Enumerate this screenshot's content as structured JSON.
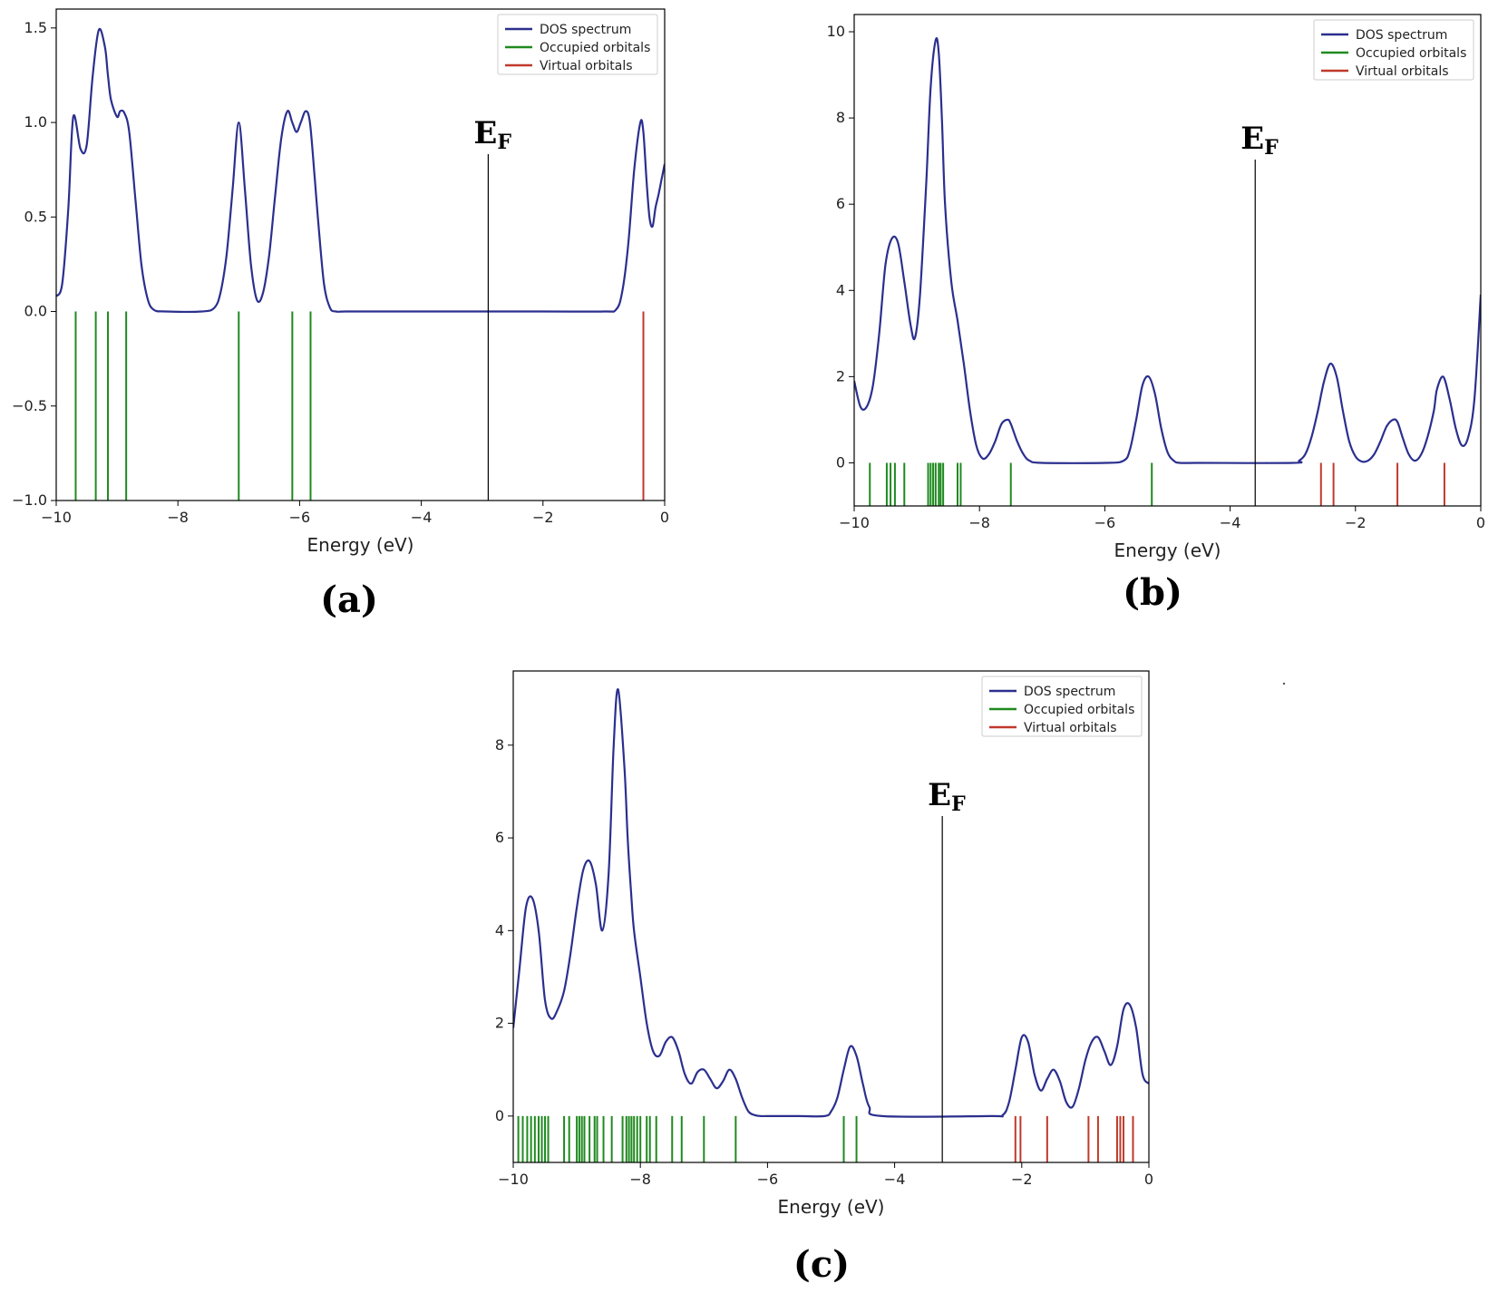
{
  "colors": {
    "dos": "#2b2f8e",
    "occupied": "#1f8a1f",
    "virtual": "#c0392b",
    "axis": "#000000",
    "fermi": "#000000"
  },
  "chart_data": [
    {
      "type": "line",
      "caption": "(a)",
      "xlabel": "Energy (eV)",
      "ylabel": "",
      "xlim": [
        -10,
        0
      ],
      "ylim": [
        -1.0,
        1.6
      ],
      "xticks": [
        -10,
        -8,
        -6,
        -4,
        -2,
        0
      ],
      "xtick_labels": [
        "−10",
        "−8",
        "−6",
        "−4",
        "−2",
        "0"
      ],
      "yticks": [
        -1.0,
        -0.5,
        0.0,
        0.5,
        1.0,
        1.5
      ],
      "ytick_labels": [
        "−1.0",
        "−0.5",
        "0.0",
        "0.5",
        "1.0",
        "1.5"
      ],
      "legend": [
        "DOS spectrum",
        "Occupied orbitals",
        "Virtual orbitals"
      ],
      "legend_position": "top-right",
      "fermi": {
        "x": -2.9,
        "label_main": "E",
        "label_sub": "F"
      },
      "series": [
        {
          "name": "DOS spectrum",
          "x": [
            -10,
            -9.9,
            -9.8,
            -9.72,
            -9.6,
            -9.5,
            -9.4,
            -9.3,
            -9.2,
            -9.15,
            -9.1,
            -9.0,
            -8.95,
            -8.88,
            -8.8,
            -8.7,
            -8.6,
            -8.5,
            -8.4,
            -8.2,
            -7.6,
            -7.4,
            -7.3,
            -7.2,
            -7.1,
            -7.0,
            -6.9,
            -6.8,
            -6.7,
            -6.6,
            -6.5,
            -6.4,
            -6.3,
            -6.2,
            -6.12,
            -6.05,
            -5.98,
            -5.9,
            -5.83,
            -5.75,
            -5.7,
            -5.6,
            -5.5,
            -5.4,
            -5.2,
            -4.0,
            -2.0,
            -1.0,
            -0.8,
            -0.7,
            -0.6,
            -0.5,
            -0.4,
            -0.35,
            -0.3,
            -0.25,
            -0.2,
            -0.15,
            -0.1,
            -0.05,
            0
          ],
          "values": [
            0.08,
            0.15,
            0.55,
            1.03,
            0.86,
            0.88,
            1.25,
            1.49,
            1.4,
            1.25,
            1.12,
            1.03,
            1.06,
            1.05,
            0.95,
            0.6,
            0.25,
            0.07,
            0.01,
            0,
            0,
            0.02,
            0.1,
            0.3,
            0.65,
            1.0,
            0.65,
            0.25,
            0.06,
            0.1,
            0.3,
            0.62,
            0.92,
            1.06,
            1.0,
            0.95,
            1.0,
            1.06,
            1.0,
            0.7,
            0.5,
            0.15,
            0.02,
            0,
            0,
            0,
            0,
            0,
            0.01,
            0.1,
            0.35,
            0.75,
            1.0,
            0.95,
            0.7,
            0.5,
            0.45,
            0.55,
            0.62,
            0.7,
            0.78
          ]
        },
        {
          "name": "Occupied orbitals",
          "type": "stick",
          "x": [
            -9.68,
            -9.35,
            -9.15,
            -8.85,
            -7.0,
            -6.12,
            -5.82
          ]
        },
        {
          "name": "Virtual orbitals",
          "type": "stick",
          "x": [
            -0.35
          ]
        }
      ]
    },
    {
      "type": "line",
      "caption": "(b)",
      "xlabel": "Energy (eV)",
      "ylabel": "",
      "xlim": [
        -10,
        0
      ],
      "ylim": [
        -1.0,
        10.4
      ],
      "xticks": [
        -10,
        -8,
        -6,
        -4,
        -2,
        0
      ],
      "xtick_labels": [
        "−10",
        "−8",
        "−6",
        "−4",
        "−2",
        "0"
      ],
      "yticks": [
        0,
        2,
        4,
        6,
        8,
        10
      ],
      "ytick_labels": [
        "0",
        "2",
        "4",
        "6",
        "8",
        "10"
      ],
      "legend": [
        "DOS spectrum",
        "Occupied orbitals",
        "Virtual orbitals"
      ],
      "legend_position": "top-right",
      "fermi": {
        "x": -3.6,
        "label_main": "E",
        "label_sub": "F"
      },
      "series": [
        {
          "name": "DOS spectrum",
          "x": [
            -10,
            -9.9,
            -9.8,
            -9.7,
            -9.6,
            -9.5,
            -9.4,
            -9.3,
            -9.2,
            -9.1,
            -9.03,
            -8.95,
            -8.85,
            -8.78,
            -8.7,
            -8.65,
            -8.6,
            -8.55,
            -8.45,
            -8.35,
            -8.25,
            -8.15,
            -8.05,
            -7.95,
            -7.85,
            -7.75,
            -7.65,
            -7.55,
            -7.5,
            -7.4,
            -7.3,
            -7.2,
            -7.0,
            -6.0,
            -5.7,
            -5.6,
            -5.5,
            -5.4,
            -5.3,
            -5.2,
            -5.1,
            -5.0,
            -4.9,
            -4.8,
            -4.5,
            -3.0,
            -2.9,
            -2.8,
            -2.7,
            -2.6,
            -2.5,
            -2.4,
            -2.3,
            -2.2,
            -2.1,
            -2.0,
            -1.9,
            -1.8,
            -1.7,
            -1.6,
            -1.5,
            -1.4,
            -1.33,
            -1.25,
            -1.15,
            -1.05,
            -0.95,
            -0.85,
            -0.75,
            -0.7,
            -0.6,
            -0.5,
            -0.4,
            -0.3,
            -0.2,
            -0.1,
            0
          ],
          "values": [
            1.9,
            1.3,
            1.3,
            1.8,
            3.0,
            4.6,
            5.2,
            5.1,
            4.2,
            3.2,
            2.9,
            3.9,
            6.5,
            8.7,
            9.8,
            9.5,
            8.0,
            6.0,
            4.2,
            3.3,
            2.3,
            1.2,
            0.4,
            0.1,
            0.2,
            0.5,
            0.9,
            1.0,
            0.9,
            0.5,
            0.2,
            0.05,
            0,
            0,
            0.05,
            0.3,
            1.0,
            1.8,
            2.0,
            1.6,
            0.8,
            0.25,
            0.05,
            0,
            0,
            0,
            0.05,
            0.2,
            0.6,
            1.2,
            1.9,
            2.3,
            2.0,
            1.2,
            0.5,
            0.15,
            0.03,
            0.05,
            0.2,
            0.5,
            0.85,
            1.0,
            0.95,
            0.6,
            0.2,
            0.05,
            0.2,
            0.6,
            1.2,
            1.7,
            2.0,
            1.5,
            0.8,
            0.4,
            0.6,
            1.5,
            3.9
          ]
        },
        {
          "name": "Occupied orbitals",
          "type": "stick",
          "x": [
            -9.75,
            -9.48,
            -9.42,
            -9.35,
            -9.2,
            -8.82,
            -8.78,
            -8.74,
            -8.7,
            -8.65,
            -8.62,
            -8.58,
            -8.35,
            -8.3,
            -7.5,
            -5.25
          ]
        },
        {
          "name": "Virtual orbitals",
          "type": "stick",
          "x": [
            -2.55,
            -2.35,
            -1.33,
            -0.58
          ]
        }
      ]
    },
    {
      "type": "line",
      "caption": "(c)",
      "xlabel": "Energy (eV)",
      "ylabel": "",
      "xlim": [
        -10,
        0
      ],
      "ylim": [
        -1.0,
        9.6
      ],
      "xticks": [
        -10,
        -8,
        -6,
        -4,
        -2,
        0
      ],
      "xtick_labels": [
        "−10",
        "−8",
        "−6",
        "−4",
        "−2",
        "0"
      ],
      "yticks": [
        0,
        2,
        4,
        6,
        8
      ],
      "ytick_labels": [
        "0",
        "2",
        "4",
        "6",
        "8"
      ],
      "legend": [
        "DOS spectrum",
        "Occupied orbitals",
        "Virtual orbitals"
      ],
      "legend_position": "top-right",
      "fermi": {
        "x": -3.25,
        "label_main": "E",
        "label_sub": "F"
      },
      "series": [
        {
          "name": "DOS spectrum",
          "x": [
            -10,
            -9.9,
            -9.8,
            -9.7,
            -9.6,
            -9.5,
            -9.4,
            -9.3,
            -9.2,
            -9.1,
            -9.0,
            -8.9,
            -8.8,
            -8.7,
            -8.6,
            -8.5,
            -8.42,
            -8.35,
            -8.25,
            -8.2,
            -8.15,
            -8.1,
            -8.0,
            -7.9,
            -7.8,
            -7.7,
            -7.6,
            -7.5,
            -7.4,
            -7.3,
            -7.2,
            -7.1,
            -7.0,
            -6.9,
            -6.8,
            -6.7,
            -6.6,
            -6.5,
            -6.4,
            -6.3,
            -6.2,
            -6.1,
            -6.0,
            -5.5,
            -5.1,
            -5.0,
            -4.9,
            -4.8,
            -4.7,
            -4.6,
            -4.5,
            -4.4,
            -4.2,
            -2.5,
            -2.3,
            -2.2,
            -2.1,
            -2.0,
            -1.9,
            -1.8,
            -1.7,
            -1.6,
            -1.5,
            -1.4,
            -1.3,
            -1.2,
            -1.1,
            -1.0,
            -0.9,
            -0.8,
            -0.7,
            -0.6,
            -0.5,
            -0.4,
            -0.3,
            -0.2,
            -0.1,
            0
          ],
          "values": [
            1.9,
            3.2,
            4.5,
            4.7,
            4.0,
            2.5,
            2.1,
            2.3,
            2.7,
            3.5,
            4.5,
            5.3,
            5.5,
            5.0,
            4.0,
            5.2,
            8.0,
            9.2,
            7.5,
            6.0,
            4.9,
            4.0,
            3.0,
            2.0,
            1.4,
            1.3,
            1.6,
            1.7,
            1.4,
            0.9,
            0.7,
            0.95,
            1.0,
            0.8,
            0.6,
            0.75,
            1.0,
            0.8,
            0.4,
            0.1,
            0.02,
            0,
            0,
            0,
            0,
            0.1,
            0.4,
            1.0,
            1.5,
            1.3,
            0.7,
            0.2,
            0,
            0,
            0.02,
            0.3,
            1.0,
            1.7,
            1.6,
            0.9,
            0.55,
            0.8,
            1.0,
            0.75,
            0.3,
            0.2,
            0.6,
            1.2,
            1.6,
            1.7,
            1.4,
            1.1,
            1.5,
            2.3,
            2.4,
            1.9,
            0.9,
            0.7
          ]
        },
        {
          "name": "Occupied orbitals",
          "type": "stick",
          "x": [
            -9.92,
            -9.85,
            -9.78,
            -9.72,
            -9.66,
            -9.6,
            -9.55,
            -9.5,
            -9.45,
            -9.2,
            -9.12,
            -9.0,
            -8.96,
            -8.92,
            -8.88,
            -8.8,
            -8.72,
            -8.68,
            -8.58,
            -8.45,
            -8.28,
            -8.22,
            -8.18,
            -8.14,
            -8.1,
            -8.05,
            -8.0,
            -7.9,
            -7.85,
            -7.75,
            -7.5,
            -7.35,
            -7.0,
            -6.5,
            -4.8,
            -4.6
          ]
        },
        {
          "name": "Virtual orbitals",
          "type": "stick",
          "x": [
            -2.1,
            -2.02,
            -1.6,
            -0.95,
            -0.8,
            -0.5,
            -0.45,
            -0.4,
            -0.25
          ]
        }
      ]
    }
  ]
}
